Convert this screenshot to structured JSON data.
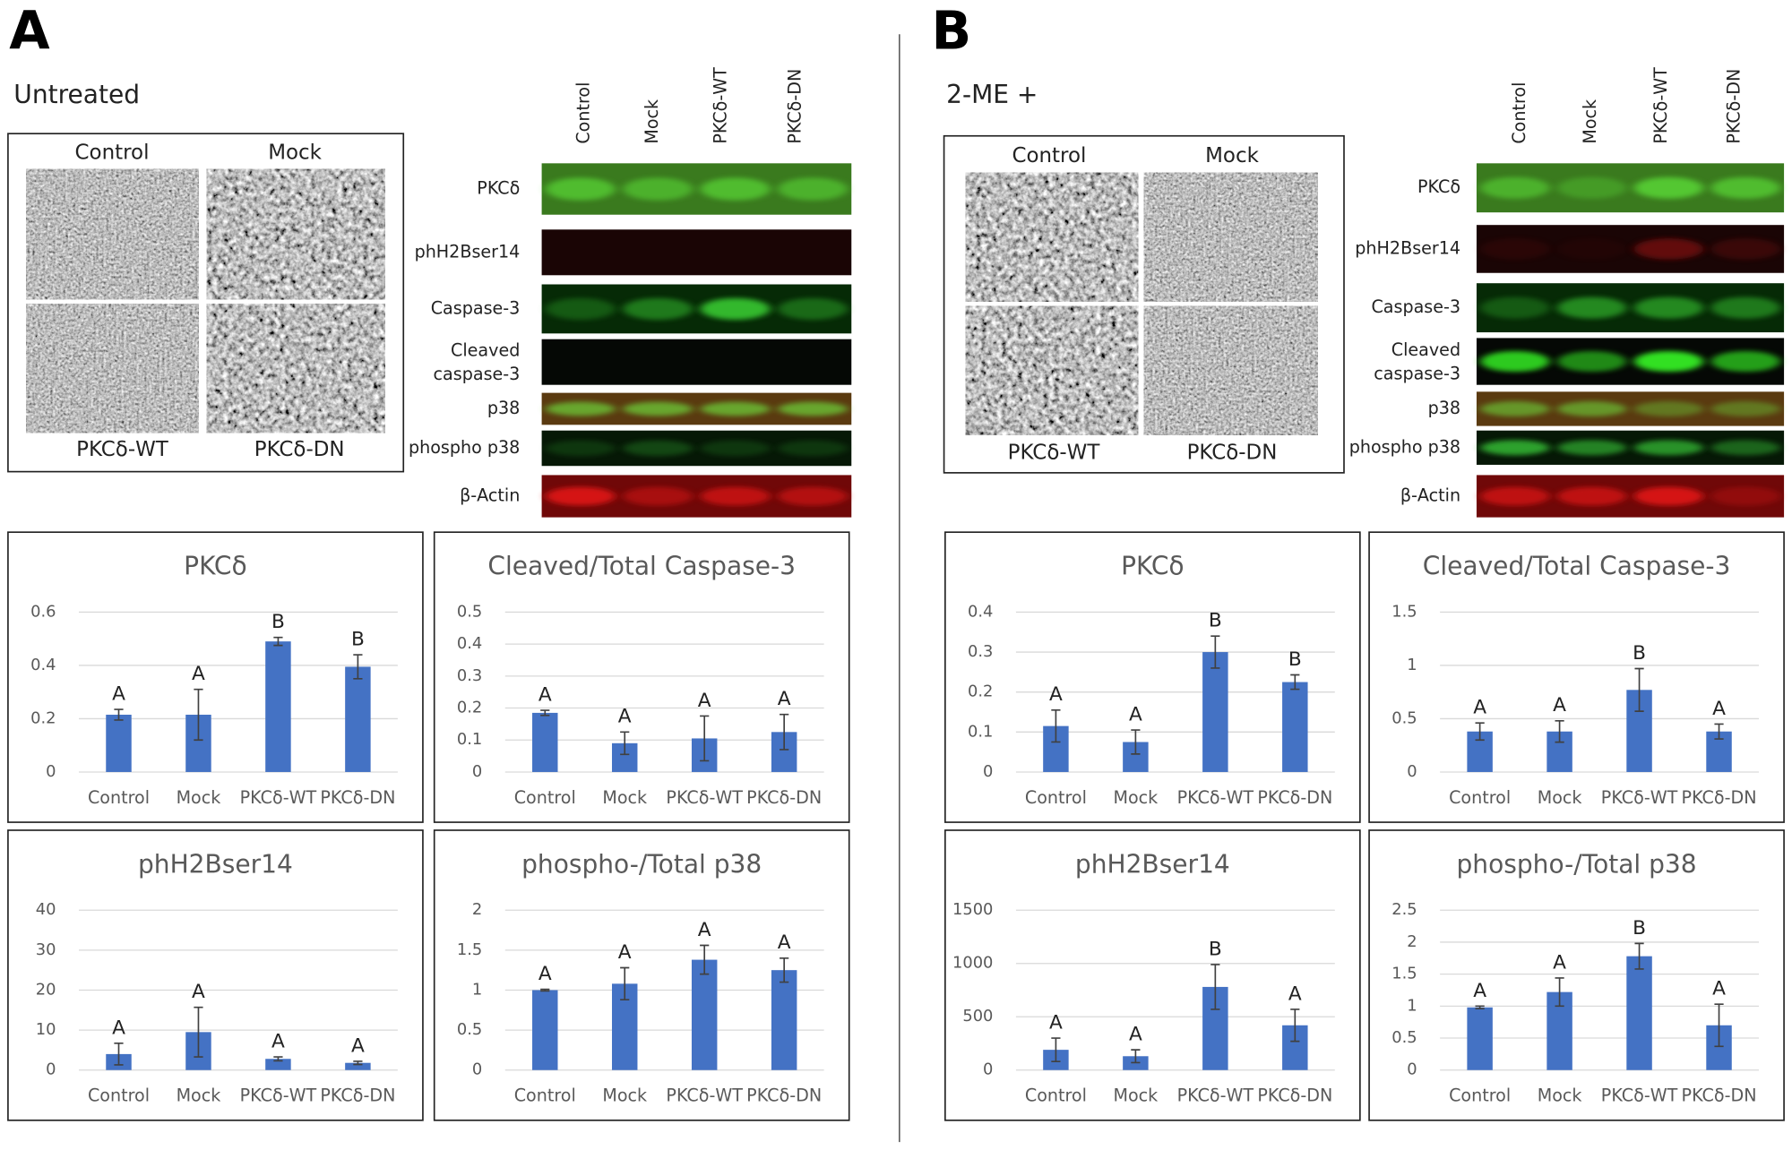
{
  "panels": [
    {
      "label": "A",
      "condition": "Untreated",
      "micrographs": [
        "Control",
        "Mock",
        "PKCδ-WT",
        "PKCδ-DN"
      ],
      "blot_lanes": [
        "Control",
        "Mock",
        "PKCδ-WT",
        "PKCδ-DN"
      ],
      "blot_rows": [
        "PKCδ",
        "phH2Bser14",
        "Caspase-3",
        "Cleaved caspase-3",
        "p38",
        "phospho p38",
        "β-Actin"
      ]
    },
    {
      "label": "B",
      "condition": "2-ME +",
      "micrographs": [
        "Control",
        "Mock",
        "PKCδ-WT",
        "PKCδ-DN"
      ],
      "blot_lanes": [
        "Control",
        "Mock",
        "PKCδ-WT",
        "PKCδ-DN"
      ],
      "blot_rows": [
        "PKCδ",
        "phH2Bser14",
        "Caspase-3",
        "Cleaved caspase-3",
        "p38",
        "phospho p38",
        "β-Actin"
      ]
    }
  ],
  "chart_data": [
    {
      "type": "bar",
      "title": "PKCδ",
      "categories": [
        "Control",
        "Mock",
        "PKCδ-WT",
        "PKCδ-DN"
      ],
      "values": [
        0.215,
        0.215,
        0.49,
        0.395
      ],
      "errors": [
        0.02,
        0.095,
        0.015,
        0.045
      ],
      "annotations": [
        "A",
        "A",
        "B",
        "B"
      ],
      "color": "#4472c4",
      "ylim": [
        0,
        0.6
      ],
      "yticks": [
        0,
        0.2,
        0.4,
        0.6
      ],
      "grid": true
    },
    {
      "type": "bar",
      "title": "Cleaved/Total Caspase-3",
      "categories": [
        "Control",
        "Mock",
        "PKCδ-WT",
        "PKCδ-DN"
      ],
      "values": [
        0.185,
        0.09,
        0.105,
        0.125
      ],
      "errors": [
        0.008,
        0.035,
        0.07,
        0.055
      ],
      "annotations": [
        "A",
        "A",
        "A",
        "A"
      ],
      "color": "#4472c4",
      "ylim": [
        0,
        0.5
      ],
      "yticks": [
        0,
        0.1,
        0.2,
        0.3,
        0.4,
        0.5
      ],
      "grid": true
    },
    {
      "type": "bar",
      "title": "phH2Bser14",
      "categories": [
        "Control",
        "Mock",
        "PKCδ-WT",
        "PKCδ-DN"
      ],
      "values": [
        4,
        9.5,
        2.8,
        1.8
      ],
      "errors": [
        2.7,
        6.2,
        0.5,
        0.4
      ],
      "annotations": [
        "A",
        "A",
        "A",
        "A"
      ],
      "color": "#4472c4",
      "ylim": [
        0,
        40
      ],
      "yticks": [
        0,
        10,
        20,
        30,
        40
      ],
      "grid": true
    },
    {
      "type": "bar",
      "title": "phospho-/Total p38",
      "categories": [
        "Control",
        "Mock",
        "PKCδ-WT",
        "PKCδ-DN"
      ],
      "values": [
        1,
        1.08,
        1.38,
        1.25
      ],
      "errors": [
        0.01,
        0.2,
        0.18,
        0.15
      ],
      "annotations": [
        "A",
        "A",
        "A",
        "A"
      ],
      "color": "#4472c4",
      "ylim": [
        0,
        2
      ],
      "yticks": [
        0,
        0.5,
        1,
        1.5,
        2
      ],
      "grid": true
    },
    {
      "type": "bar",
      "title": "PKCδ",
      "categories": [
        "Control",
        "Mock",
        "PKCδ-WT",
        "PKCδ-DN"
      ],
      "values": [
        0.115,
        0.075,
        0.3,
        0.225
      ],
      "errors": [
        0.04,
        0.03,
        0.04,
        0.018
      ],
      "annotations": [
        "A",
        "A",
        "B",
        "B"
      ],
      "color": "#4472c4",
      "ylim": [
        0,
        0.4
      ],
      "yticks": [
        0,
        0.1,
        0.2,
        0.3,
        0.4
      ],
      "grid": true
    },
    {
      "type": "bar",
      "title": "Cleaved/Total Caspase-3",
      "categories": [
        "Control",
        "Mock",
        "PKCδ-WT",
        "PKCδ-DN"
      ],
      "values": [
        0.38,
        0.38,
        0.77,
        0.38
      ],
      "errors": [
        0.08,
        0.1,
        0.2,
        0.07
      ],
      "annotations": [
        "A",
        "A",
        "B",
        "A"
      ],
      "color": "#4472c4",
      "ylim": [
        0,
        1.5
      ],
      "yticks": [
        0,
        0.5,
        1,
        1.5
      ],
      "grid": true
    },
    {
      "type": "bar",
      "title": "phH2Bser14",
      "categories": [
        "Control",
        "Mock",
        "PKCδ-WT",
        "PKCδ-DN"
      ],
      "values": [
        190,
        130,
        780,
        420
      ],
      "errors": [
        110,
        60,
        210,
        150
      ],
      "annotations": [
        "A",
        "A",
        "B",
        "A"
      ],
      "color": "#4472c4",
      "ylim": [
        0,
        1500
      ],
      "yticks": [
        0,
        500,
        1000,
        1500
      ],
      "grid": true
    },
    {
      "type": "bar",
      "title": "phospho-/Total p38",
      "categories": [
        "Control",
        "Mock",
        "PKCδ-WT",
        "PKCδ-DN"
      ],
      "values": [
        0.98,
        1.22,
        1.78,
        0.7
      ],
      "errors": [
        0.02,
        0.22,
        0.2,
        0.33
      ],
      "annotations": [
        "A",
        "A",
        "B",
        "A"
      ],
      "color": "#4472c4",
      "ylim": [
        0,
        2.5
      ],
      "yticks": [
        0,
        0.5,
        1,
        1.5,
        2,
        2.5
      ],
      "grid": true
    }
  ]
}
